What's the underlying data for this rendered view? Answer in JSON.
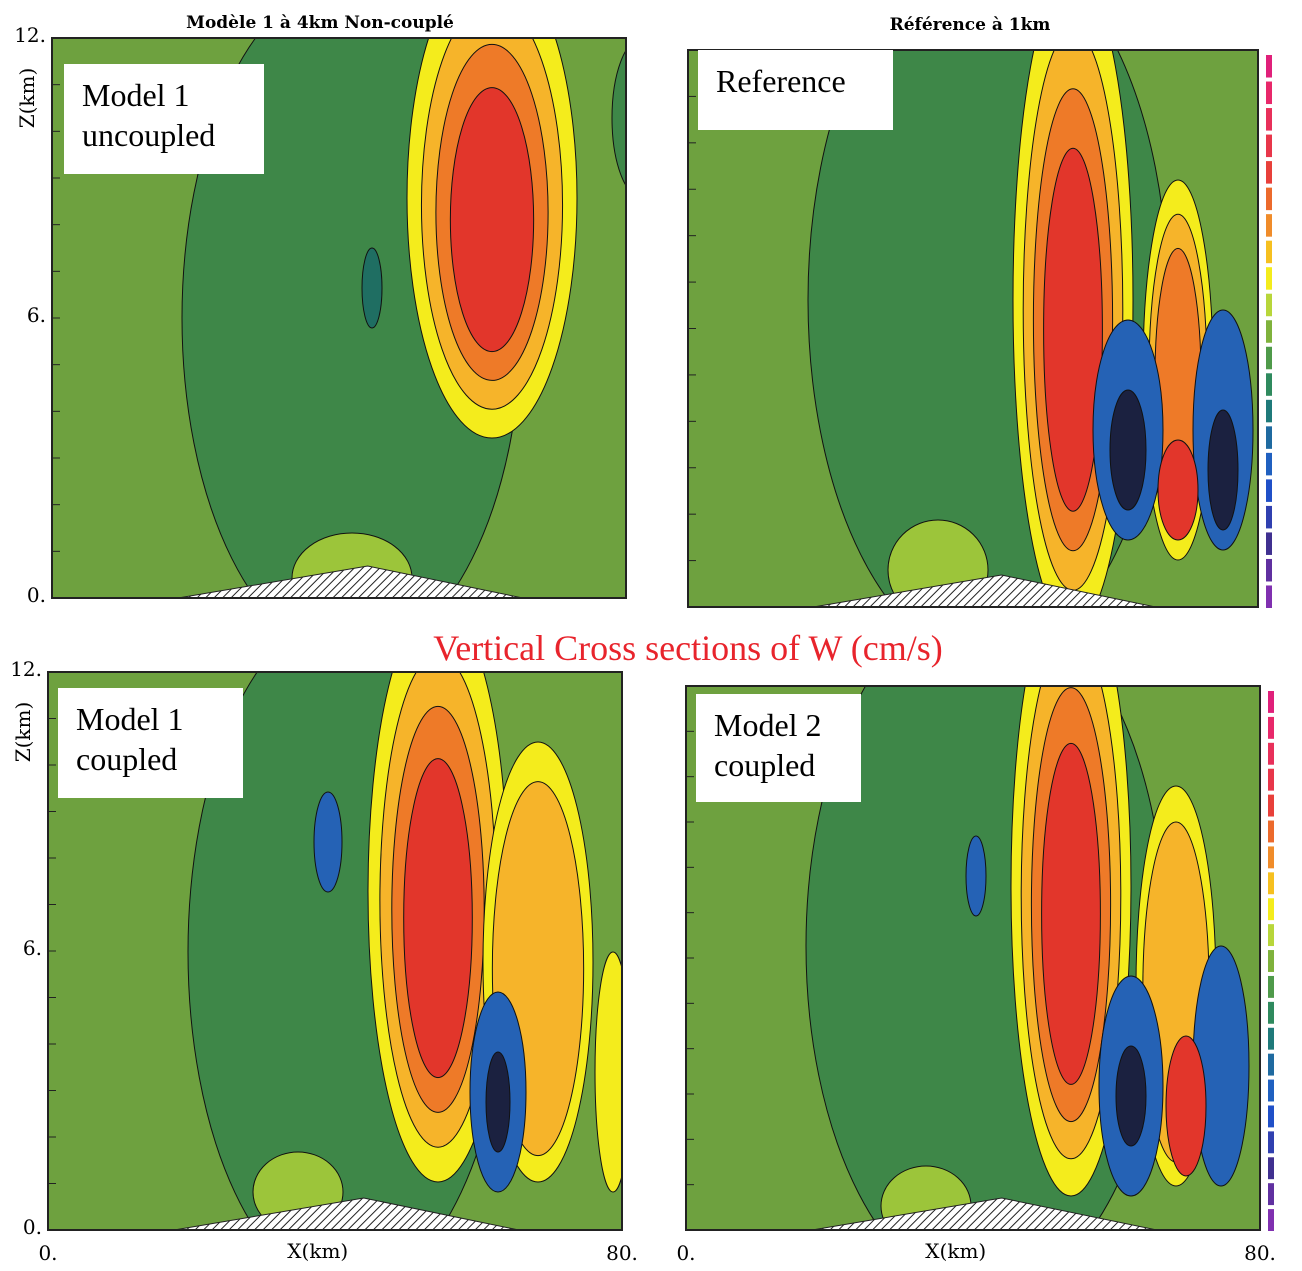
{
  "caption": "Vertical Cross sections of W (cm/s)",
  "panels": [
    {
      "title": "Modèle 1 à 4km  Non-couplé",
      "label": [
        "Model 1",
        "uncoupled"
      ],
      "y_axis_label": "Z(km)",
      "y_ticks": [
        "12.",
        "6.",
        "0."
      ]
    },
    {
      "title": "Référence à 1km",
      "label": [
        "Reference"
      ]
    },
    {
      "label": [
        "Model 1",
        "coupled"
      ],
      "y_axis_label": "Z(km)",
      "y_ticks": [
        "12.",
        "6.",
        "0."
      ],
      "x_axis_label": "X(km)",
      "x_ticks": [
        "0.",
        "80."
      ]
    },
    {
      "label": [
        "Model 2",
        "coupled"
      ],
      "x_axis_label": "X(km)",
      "x_ticks": [
        "0.",
        "80."
      ]
    }
  ]
}
